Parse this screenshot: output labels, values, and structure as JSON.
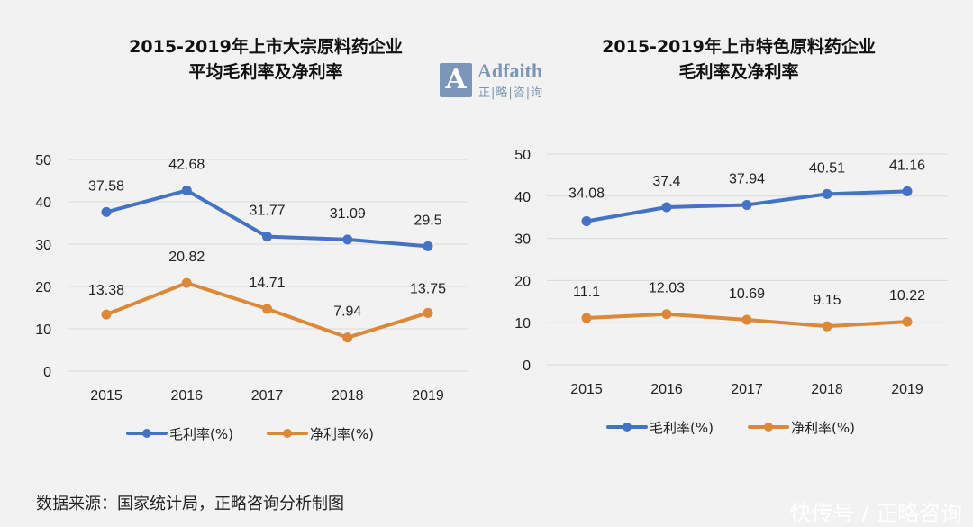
{
  "logo": {
    "mark": "A",
    "name_en": "Adfaith",
    "name_cn": "正|略|咨|询",
    "color": "#7b96b8"
  },
  "source_note": "数据来源：国家统计局，正略咨询分析制图",
  "watermark": "快传号 / 正略咨询",
  "chart_data": [
    {
      "type": "line",
      "title_line1": "2015-2019年上市大宗原料药企业",
      "title_line2": "平均毛利率及净利率",
      "categories": [
        "2015",
        "2016",
        "2017",
        "2018",
        "2019"
      ],
      "series": [
        {
          "name": "毛利率(%)",
          "color": "#4472c4",
          "values": [
            37.58,
            42.68,
            31.77,
            31.09,
            29.5
          ],
          "labels": [
            "37.58",
            "42.68",
            "31.77",
            "31.09",
            "29.5"
          ]
        },
        {
          "name": "净利率(%)",
          "color": "#dd8838",
          "values": [
            13.38,
            20.82,
            14.71,
            7.94,
            13.75
          ],
          "labels": [
            "13.38",
            "20.82",
            "14.71",
            "7.94",
            "13.75"
          ]
        }
      ],
      "yticks": [
        "0",
        "10",
        "20",
        "30",
        "40",
        "50"
      ],
      "ylim": [
        0,
        50
      ],
      "grid": true,
      "legend": "bottom"
    },
    {
      "type": "line",
      "title_line1": "2015-2019年上市特色原料药企业",
      "title_line2": "毛利率及净利率",
      "categories": [
        "2015",
        "2016",
        "2017",
        "2018",
        "2019"
      ],
      "series": [
        {
          "name": "毛利率(%)",
          "color": "#4472c4",
          "values": [
            34.08,
            37.4,
            37.94,
            40.51,
            41.16
          ],
          "labels": [
            "34.08",
            "37.4",
            "37.94",
            "40.51",
            "41.16"
          ]
        },
        {
          "name": "净利率(%)",
          "color": "#dd8838",
          "values": [
            11.1,
            12.03,
            10.69,
            9.15,
            10.22
          ],
          "labels": [
            "11.1",
            "12.03",
            "10.69",
            "9.15",
            "10.22"
          ]
        }
      ],
      "yticks": [
        "0",
        "10",
        "20",
        "30",
        "40",
        "50"
      ],
      "ylim": [
        0,
        50
      ],
      "grid": true,
      "legend": "bottom"
    }
  ]
}
